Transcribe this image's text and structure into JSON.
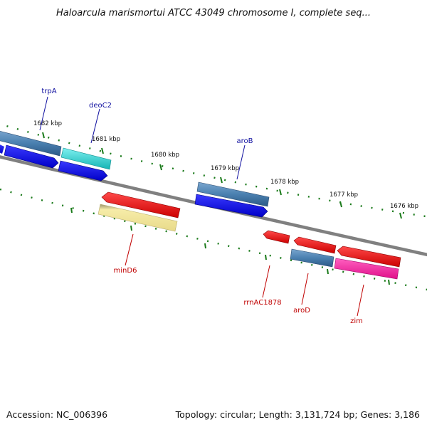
{
  "title": "Haloarcula marismortui ATCC 43049 chromosome I, complete seq...",
  "footer": {
    "accession": "Accession: NC_006396",
    "topology": "Topology: circular; Length: 3,131,724 bp; Genes: 3,186"
  },
  "colors": {
    "backbone": "#808080",
    "tick": "#1a7a1a",
    "label_blue": "#1010a0",
    "label_red": "#c00000",
    "gene_blue": "#0000ee",
    "gene_steel": "#4a80b0",
    "gene_cyan": "#20c8c8",
    "gene_red": "#ee0000",
    "gene_pale": "#f2e6a0",
    "gene_pink": "#ff20a0"
  },
  "scale_marks": [
    {
      "label": "1682 kbp"
    },
    {
      "label": "1681 kbp"
    },
    {
      "label": "1680 kbp"
    },
    {
      "label": "1679 kbp"
    },
    {
      "label": "1678 kbp"
    },
    {
      "label": "1677 kbp"
    },
    {
      "label": "1676 kbp"
    }
  ],
  "gene_labels": [
    {
      "name": "trpA",
      "color": "label_blue"
    },
    {
      "name": "deoC2",
      "color": "label_blue"
    },
    {
      "name": "aroB",
      "color": "label_blue"
    },
    {
      "name": "minD6",
      "color": "label_red"
    },
    {
      "name": "rrnAC1878",
      "color": "label_red"
    },
    {
      "name": "aroD",
      "color": "label_red"
    },
    {
      "name": "zim",
      "color": "label_red"
    }
  ]
}
